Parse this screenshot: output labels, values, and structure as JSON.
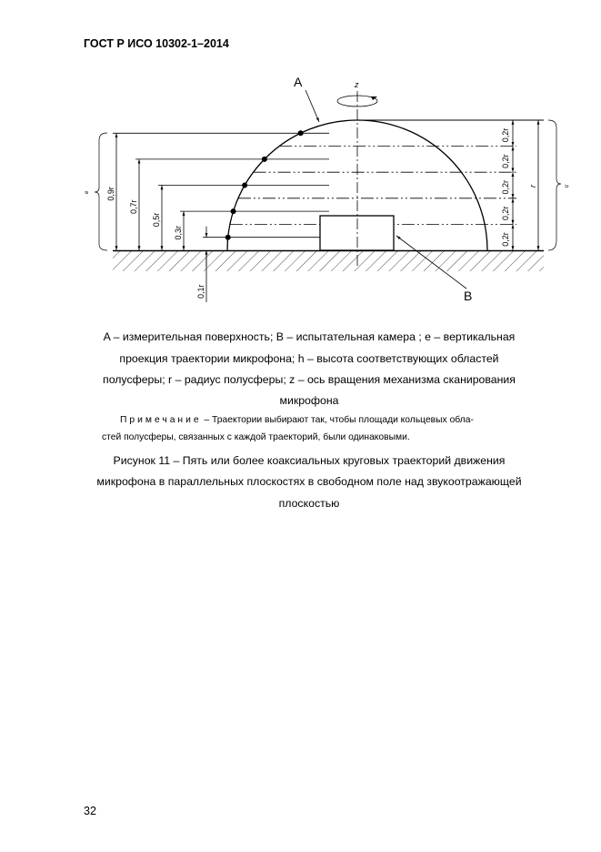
{
  "header": {
    "title": "ГОСТ Р ИСО 10302-1–2014"
  },
  "figure": {
    "label_a": "A",
    "label_b": "B",
    "label_z": "z",
    "dims_left": [
      "0,9r",
      "0,7r",
      "0,5r",
      "0,3r",
      "0,1r"
    ],
    "dims_right": [
      "0,2r",
      "0,2r",
      "0,2r",
      "0,2r",
      "0,2r"
    ],
    "dim_r": "r",
    "brace_left": "e",
    "brace_right": "h"
  },
  "legend": {
    "line1": "A – измерительная поверхность; B – испытательная камера ; е – вертикальная",
    "line2": "проекция траектории микрофона; h – высота соответствующих областей",
    "line3": "полусферы; r – радиус полусферы; z – ось вращения механизма сканирования",
    "line4": "микрофона"
  },
  "note": {
    "label": "Примечание",
    "text1": " – Траектории выбирают так, чтобы площади кольцевых обла-",
    "text2": "стей полусферы, связанных с каждой траекторий, были одинаковыми."
  },
  "caption": {
    "line1": "Рисунок 11 – Пять или более коаксиальных круговых траекторий движения",
    "line2": "микрофона в параллельных плоскостях в свободном поле над звукоотражающей",
    "line3": "плоскостью"
  },
  "page_number": "32"
}
